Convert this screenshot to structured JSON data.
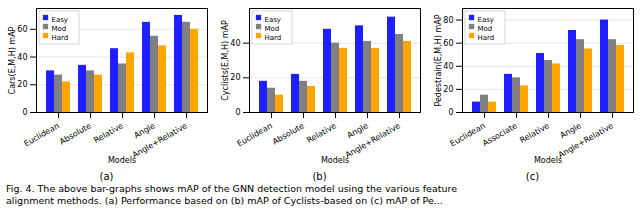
{
  "chart_data": [
    {
      "type": "bar",
      "title": "(a)",
      "xlabel": "Models",
      "ylabel": "Cars(E,M,H) mAP",
      "categories": [
        "Euclidean",
        "Absolute",
        "Relative",
        "Angle",
        "Angle+Relative"
      ],
      "series": [
        {
          "name": "Easy",
          "color": "#1f1fff",
          "values": [
            30,
            34,
            46,
            65,
            70
          ]
        },
        {
          "name": "Mod",
          "color": "#808080",
          "values": [
            27,
            30,
            35,
            55,
            65
          ]
        },
        {
          "name": "Hard",
          "color": "#ffa500",
          "values": [
            22,
            27,
            43,
            48,
            60
          ]
        }
      ],
      "ylim": [
        0,
        75
      ],
      "yticks": [
        0,
        20,
        40,
        60
      ],
      "grid": true,
      "legend": "upper left"
    },
    {
      "type": "bar",
      "title": "(b)",
      "xlabel": "Models",
      "ylabel": "Cyclists(E,M,H) mAP",
      "categories": [
        "Euclidean",
        "Absolute",
        "Relative",
        "Angle",
        "Angle+Relative"
      ],
      "series": [
        {
          "name": "Easy",
          "color": "#1f1fff",
          "values": [
            18,
            22,
            48,
            50,
            55
          ]
        },
        {
          "name": "Mod",
          "color": "#808080",
          "values": [
            14,
            18,
            40,
            41,
            45
          ]
        },
        {
          "name": "Hard",
          "color": "#ffa500",
          "values": [
            10,
            15,
            37,
            37,
            41
          ]
        }
      ],
      "ylim": [
        0,
        60
      ],
      "yticks": [
        0,
        20,
        40
      ],
      "grid": true,
      "legend": "upper left"
    },
    {
      "type": "bar",
      "title": "(c)",
      "xlabel": "Models",
      "ylabel": "Pedestrain(E,M,H) mAP",
      "categories": [
        "Euclidean",
        "Associate",
        "Relative",
        "Angle",
        "Angle+Relative"
      ],
      "series": [
        {
          "name": "Easy",
          "color": "#1f1fff",
          "values": [
            9,
            33,
            51,
            71,
            80
          ]
        },
        {
          "name": "Mod",
          "color": "#808080",
          "values": [
            15,
            30,
            45,
            63,
            63
          ]
        },
        {
          "name": "Hard",
          "color": "#ffa500",
          "values": [
            9,
            23,
            42,
            55,
            58
          ]
        }
      ],
      "ylim": [
        0,
        90
      ],
      "yticks": [
        0,
        20,
        40,
        60,
        80
      ],
      "grid": true,
      "legend": "upper left"
    }
  ],
  "caption": [
    "Fig. 4. The above bar-graphs shows mAP of the GNN detection model using the various feature",
    "alignment methods. (a) Performance based on (b) mAP of Cyclists-based on (c) mAP of Pe..."
  ]
}
